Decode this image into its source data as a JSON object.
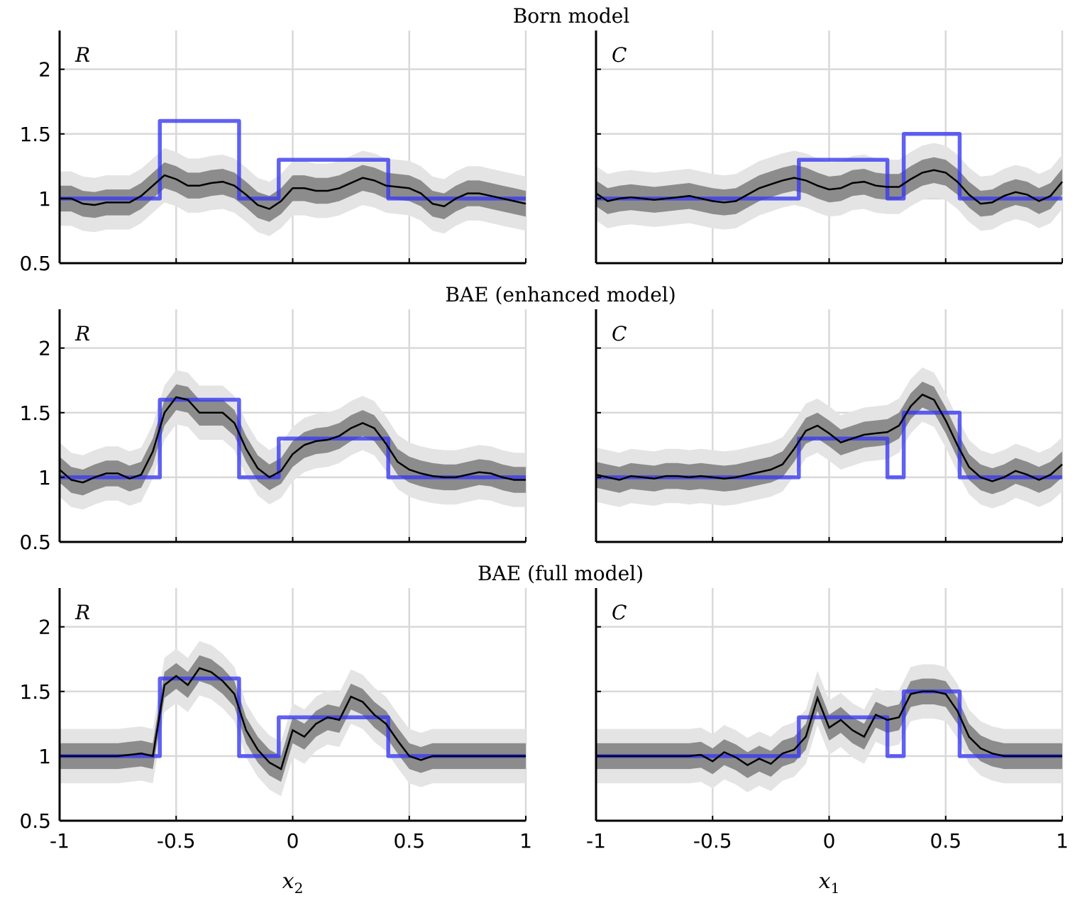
{
  "colors": {
    "truth": "#3a3af0",
    "estimate": "#000000",
    "band_inner": "#8c8c8c",
    "band_outer": "#e4e4e4",
    "grid": "#d9d9d9",
    "axis": "#000000"
  },
  "chart_data": [
    {
      "type": "line",
      "row_title": "Born model",
      "panel_label": "R",
      "xlabel": "",
      "xlim": [
        -1,
        1
      ],
      "ylim": [
        0.5,
        2.3
      ],
      "xticks": [
        -1,
        -0.5,
        0,
        0.5,
        1
      ],
      "xtick_labels": [
        "-1",
        "-0.5",
        "0",
        "0.5",
        "1"
      ],
      "yticks": [
        0.5,
        1,
        1.5,
        2
      ],
      "ytick_labels": [
        "0.5",
        "1",
        "1.5",
        "2"
      ],
      "truth_steps": [
        [
          -1,
          1
        ],
        [
          -0.57,
          1.6
        ],
        [
          -0.23,
          1.0
        ],
        [
          -0.06,
          1.3
        ],
        [
          0.41,
          1.0
        ],
        [
          1,
          1
        ]
      ],
      "estimate": {
        "x": [
          -1,
          -0.95,
          -0.9,
          -0.85,
          -0.8,
          -0.75,
          -0.7,
          -0.65,
          -0.6,
          -0.55,
          -0.5,
          -0.45,
          -0.4,
          -0.35,
          -0.3,
          -0.25,
          -0.2,
          -0.15,
          -0.1,
          -0.05,
          0,
          0.05,
          0.1,
          0.15,
          0.2,
          0.25,
          0.3,
          0.35,
          0.4,
          0.45,
          0.5,
          0.55,
          0.6,
          0.65,
          0.7,
          0.75,
          0.8,
          0.85,
          0.9,
          0.95,
          1
        ],
        "y": [
          1.0,
          1.0,
          0.96,
          0.95,
          0.97,
          0.97,
          0.97,
          1.02,
          1.1,
          1.18,
          1.15,
          1.1,
          1.1,
          1.12,
          1.13,
          1.1,
          1.03,
          0.95,
          0.92,
          0.98,
          1.08,
          1.08,
          1.06,
          1.06,
          1.08,
          1.12,
          1.16,
          1.14,
          1.1,
          1.09,
          1.08,
          1.04,
          0.96,
          0.94,
          1.0,
          1.04,
          1.04,
          1.02,
          1.0,
          0.98,
          0.96
        ]
      },
      "band_inner_halfwidth": 0.1,
      "band_outer_halfwidth": 0.21
    },
    {
      "type": "line",
      "row_title": "Born model",
      "panel_label": "C",
      "xlabel": "",
      "xlim": [
        -1,
        1
      ],
      "ylim": [
        0.5,
        2.3
      ],
      "xticks": [
        -1,
        -0.5,
        0,
        0.5,
        1
      ],
      "xtick_labels": [
        "-1",
        "-0.5",
        "0",
        "0.5",
        "1"
      ],
      "yticks": [
        0.5,
        1,
        1.5,
        2
      ],
      "ytick_labels": [
        "0.5",
        "1",
        "1.5",
        "2"
      ],
      "truth_steps": [
        [
          -1,
          1
        ],
        [
          -0.13,
          1.3
        ],
        [
          0.25,
          1.0
        ],
        [
          0.32,
          1.5
        ],
        [
          0.56,
          1.0
        ],
        [
          1,
          1
        ]
      ],
      "estimate": {
        "x": [
          -1,
          -0.95,
          -0.9,
          -0.85,
          -0.8,
          -0.75,
          -0.7,
          -0.65,
          -0.6,
          -0.55,
          -0.5,
          -0.45,
          -0.4,
          -0.35,
          -0.3,
          -0.25,
          -0.2,
          -0.15,
          -0.1,
          -0.05,
          0,
          0.05,
          0.1,
          0.15,
          0.2,
          0.25,
          0.3,
          0.35,
          0.4,
          0.45,
          0.5,
          0.55,
          0.6,
          0.65,
          0.7,
          0.75,
          0.8,
          0.85,
          0.9,
          0.95,
          1
        ],
        "y": [
          1.04,
          0.98,
          1.0,
          1.01,
          1.0,
          0.99,
          1.0,
          1.01,
          1.02,
          1.0,
          0.98,
          0.97,
          0.98,
          1.03,
          1.08,
          1.11,
          1.14,
          1.16,
          1.14,
          1.1,
          1.07,
          1.08,
          1.12,
          1.13,
          1.1,
          1.09,
          1.09,
          1.15,
          1.2,
          1.22,
          1.2,
          1.13,
          1.03,
          0.96,
          0.97,
          1.02,
          1.05,
          1.03,
          0.98,
          1.02,
          1.13
        ]
      },
      "band_inner_halfwidth": 0.1,
      "band_outer_halfwidth": 0.21
    },
    {
      "type": "line",
      "row_title": "BAE (enhanced model)",
      "panel_label": "R",
      "xlabel": "",
      "xlim": [
        -1,
        1
      ],
      "ylim": [
        0.5,
        2.3
      ],
      "xticks": [
        -1,
        -0.5,
        0,
        0.5,
        1
      ],
      "xtick_labels": [
        "-1",
        "-0.5",
        "0",
        "0.5",
        "1"
      ],
      "yticks": [
        0.5,
        1,
        1.5,
        2
      ],
      "ytick_labels": [
        "0.5",
        "1",
        "1.5",
        "2"
      ],
      "truth_steps": [
        [
          -1,
          1
        ],
        [
          -0.57,
          1.6
        ],
        [
          -0.23,
          1.0
        ],
        [
          -0.06,
          1.3
        ],
        [
          0.41,
          1.0
        ],
        [
          1,
          1
        ]
      ],
      "estimate": {
        "x": [
          -1,
          -0.95,
          -0.9,
          -0.85,
          -0.8,
          -0.75,
          -0.7,
          -0.65,
          -0.6,
          -0.55,
          -0.5,
          -0.45,
          -0.4,
          -0.35,
          -0.3,
          -0.25,
          -0.2,
          -0.15,
          -0.1,
          -0.05,
          0,
          0.05,
          0.1,
          0.15,
          0.2,
          0.25,
          0.3,
          0.35,
          0.4,
          0.45,
          0.5,
          0.55,
          0.6,
          0.65,
          0.7,
          0.75,
          0.8,
          0.85,
          0.9,
          0.95,
          1
        ],
        "y": [
          1.06,
          0.98,
          0.96,
          1.0,
          1.03,
          1.03,
          0.99,
          1.02,
          1.2,
          1.5,
          1.62,
          1.6,
          1.5,
          1.5,
          1.5,
          1.42,
          1.22,
          1.07,
          1.0,
          1.05,
          1.18,
          1.25,
          1.28,
          1.29,
          1.32,
          1.38,
          1.42,
          1.38,
          1.26,
          1.12,
          1.06,
          1.03,
          1.01,
          1.0,
          1.0,
          1.02,
          1.04,
          1.03,
          1.0,
          0.98,
          0.98
        ]
      },
      "band_inner_halfwidth": 0.1,
      "band_outer_halfwidth": 0.21
    },
    {
      "type": "line",
      "row_title": "BAE (enhanced model)",
      "panel_label": "C",
      "xlabel": "",
      "xlim": [
        -1,
        1
      ],
      "ylim": [
        0.5,
        2.3
      ],
      "xticks": [
        -1,
        -0.5,
        0,
        0.5,
        1
      ],
      "xtick_labels": [
        "-1",
        "-0.5",
        "0",
        "0.5",
        "1"
      ],
      "yticks": [
        0.5,
        1,
        1.5,
        2
      ],
      "ytick_labels": [
        "0.5",
        "1",
        "1.5",
        "2"
      ],
      "truth_steps": [
        [
          -1,
          1
        ],
        [
          -0.13,
          1.3
        ],
        [
          0.25,
          1.0
        ],
        [
          0.32,
          1.5
        ],
        [
          0.56,
          1.0
        ],
        [
          1,
          1
        ]
      ],
      "estimate": {
        "x": [
          -1,
          -0.95,
          -0.9,
          -0.85,
          -0.8,
          -0.75,
          -0.7,
          -0.65,
          -0.6,
          -0.55,
          -0.5,
          -0.45,
          -0.4,
          -0.35,
          -0.3,
          -0.25,
          -0.2,
          -0.15,
          -0.1,
          -0.05,
          0,
          0.05,
          0.1,
          0.15,
          0.2,
          0.25,
          0.3,
          0.35,
          0.4,
          0.45,
          0.5,
          0.55,
          0.6,
          0.65,
          0.7,
          0.75,
          0.8,
          0.85,
          0.9,
          0.95,
          1
        ],
        "y": [
          1.02,
          1.0,
          0.98,
          1.01,
          1.0,
          0.99,
          1.01,
          1.01,
          1.0,
          1.01,
          1.0,
          0.99,
          1.0,
          1.02,
          1.04,
          1.06,
          1.1,
          1.22,
          1.36,
          1.4,
          1.34,
          1.27,
          1.3,
          1.33,
          1.34,
          1.35,
          1.4,
          1.55,
          1.64,
          1.6,
          1.44,
          1.25,
          1.08,
          1.0,
          0.97,
          1.0,
          1.05,
          1.02,
          0.98,
          1.02,
          1.1
        ]
      },
      "band_inner_halfwidth": 0.1,
      "band_outer_halfwidth": 0.21
    },
    {
      "type": "line",
      "row_title": "BAE (full model)",
      "panel_label": "R",
      "xlabel": "x2",
      "xlim": [
        -1,
        1
      ],
      "ylim": [
        0.5,
        2.3
      ],
      "xticks": [
        -1,
        -0.5,
        0,
        0.5,
        1
      ],
      "xtick_labels": [
        "-1",
        "-0.5",
        "0",
        "0.5",
        "1"
      ],
      "yticks": [
        0.5,
        1,
        1.5,
        2
      ],
      "ytick_labels": [
        "0.5",
        "1",
        "1.5",
        "2"
      ],
      "truth_steps": [
        [
          -1,
          1
        ],
        [
          -0.57,
          1.6
        ],
        [
          -0.23,
          1.0
        ],
        [
          -0.06,
          1.3
        ],
        [
          0.41,
          1.0
        ],
        [
          1,
          1
        ]
      ],
      "estimate": {
        "x": [
          -1,
          -0.95,
          -0.9,
          -0.85,
          -0.8,
          -0.75,
          -0.7,
          -0.65,
          -0.6,
          -0.55,
          -0.5,
          -0.45,
          -0.4,
          -0.35,
          -0.3,
          -0.25,
          -0.2,
          -0.15,
          -0.1,
          -0.05,
          0,
          0.05,
          0.1,
          0.15,
          0.2,
          0.25,
          0.3,
          0.35,
          0.4,
          0.45,
          0.5,
          0.55,
          0.6,
          0.65,
          0.7,
          0.75,
          0.8,
          0.85,
          0.9,
          0.95,
          1
        ],
        "y": [
          1.0,
          1.0,
          1.0,
          1.0,
          1.0,
          1.0,
          1.01,
          1.02,
          1.0,
          1.55,
          1.62,
          1.55,
          1.68,
          1.65,
          1.58,
          1.48,
          1.2,
          1.05,
          0.95,
          0.9,
          1.2,
          1.15,
          1.25,
          1.3,
          1.28,
          1.46,
          1.42,
          1.32,
          1.25,
          1.12,
          1.0,
          0.97,
          1.0,
          1.0,
          1.0,
          1.0,
          1.0,
          1.0,
          1.0,
          1.0,
          1.0
        ]
      },
      "band_inner_halfwidth": 0.1,
      "band_outer_halfwidth": 0.21
    },
    {
      "type": "line",
      "row_title": "BAE (full model)",
      "panel_label": "C",
      "xlabel": "x1",
      "xlim": [
        -1,
        1
      ],
      "ylim": [
        0.5,
        2.3
      ],
      "xticks": [
        -1,
        -0.5,
        0,
        0.5,
        1
      ],
      "xtick_labels": [
        "-1",
        "-0.5",
        "0",
        "0.5",
        "1"
      ],
      "yticks": [
        0.5,
        1,
        1.5,
        2
      ],
      "ytick_labels": [
        "0.5",
        "1",
        "1.5",
        "2"
      ],
      "truth_steps": [
        [
          -1,
          1
        ],
        [
          -0.13,
          1.3
        ],
        [
          0.25,
          1.0
        ],
        [
          0.32,
          1.5
        ],
        [
          0.56,
          1.0
        ],
        [
          1,
          1
        ]
      ],
      "estimate": {
        "x": [
          -1,
          -0.95,
          -0.9,
          -0.85,
          -0.8,
          -0.75,
          -0.7,
          -0.65,
          -0.6,
          -0.55,
          -0.5,
          -0.45,
          -0.4,
          -0.35,
          -0.3,
          -0.25,
          -0.2,
          -0.15,
          -0.1,
          -0.05,
          0,
          0.05,
          0.1,
          0.15,
          0.2,
          0.25,
          0.3,
          0.35,
          0.4,
          0.45,
          0.5,
          0.55,
          0.6,
          0.65,
          0.7,
          0.75,
          0.8,
          0.85,
          0.9,
          0.95,
          1
        ],
        "y": [
          1.0,
          1.0,
          1.0,
          1.0,
          1.0,
          1.0,
          1.0,
          1.0,
          1.0,
          1.01,
          0.96,
          1.03,
          0.99,
          0.93,
          0.98,
          0.94,
          1.02,
          1.05,
          1.15,
          1.45,
          1.22,
          1.28,
          1.2,
          1.15,
          1.32,
          1.28,
          1.3,
          1.48,
          1.5,
          1.5,
          1.48,
          1.35,
          1.15,
          1.06,
          1.02,
          1.0,
          1.0,
          1.0,
          1.0,
          1.0,
          1.0
        ]
      },
      "band_inner_halfwidth": 0.1,
      "band_outer_halfwidth": 0.21
    }
  ]
}
